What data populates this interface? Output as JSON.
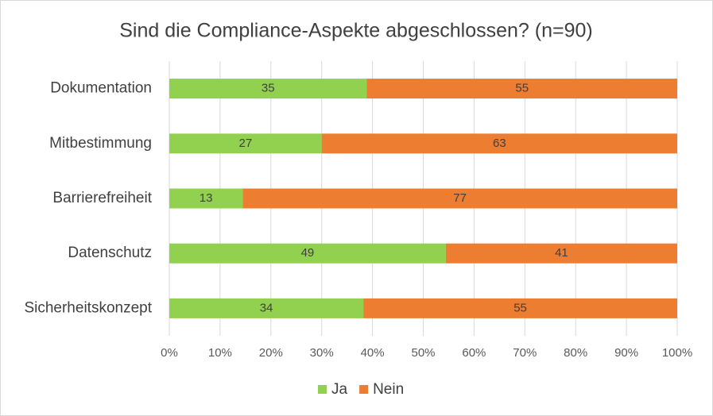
{
  "chart_data": {
    "type": "bar",
    "orientation": "horizontal",
    "stacked": "percent",
    "title": "Sind die Compliance-Aspekte abgeschlossen? (n=90)",
    "categories": [
      "Dokumentation",
      "Mitbestimmung",
      "Barrierefreiheit",
      "Datenschutz",
      "Sicherheitskonzept"
    ],
    "series": [
      {
        "name": "Ja",
        "color": "#92d050",
        "values": [
          35,
          27,
          13,
          49,
          34
        ]
      },
      {
        "name": "Nein",
        "color": "#ed7d31",
        "values": [
          55,
          63,
          77,
          41,
          55
        ]
      }
    ],
    "xlim": [
      0,
      100
    ],
    "xticks": [
      {
        "value": 0,
        "label": "0%"
      },
      {
        "value": 10,
        "label": "10%"
      },
      {
        "value": 20,
        "label": "20%"
      },
      {
        "value": 30,
        "label": "30%"
      },
      {
        "value": 40,
        "label": "40%"
      },
      {
        "value": 50,
        "label": "50%"
      },
      {
        "value": 60,
        "label": "60%"
      },
      {
        "value": 70,
        "label": "70%"
      },
      {
        "value": 80,
        "label": "80%"
      },
      {
        "value": 90,
        "label": "90%"
      },
      {
        "value": 100,
        "label": "100%"
      }
    ],
    "grid": true,
    "legend": "bottom"
  }
}
